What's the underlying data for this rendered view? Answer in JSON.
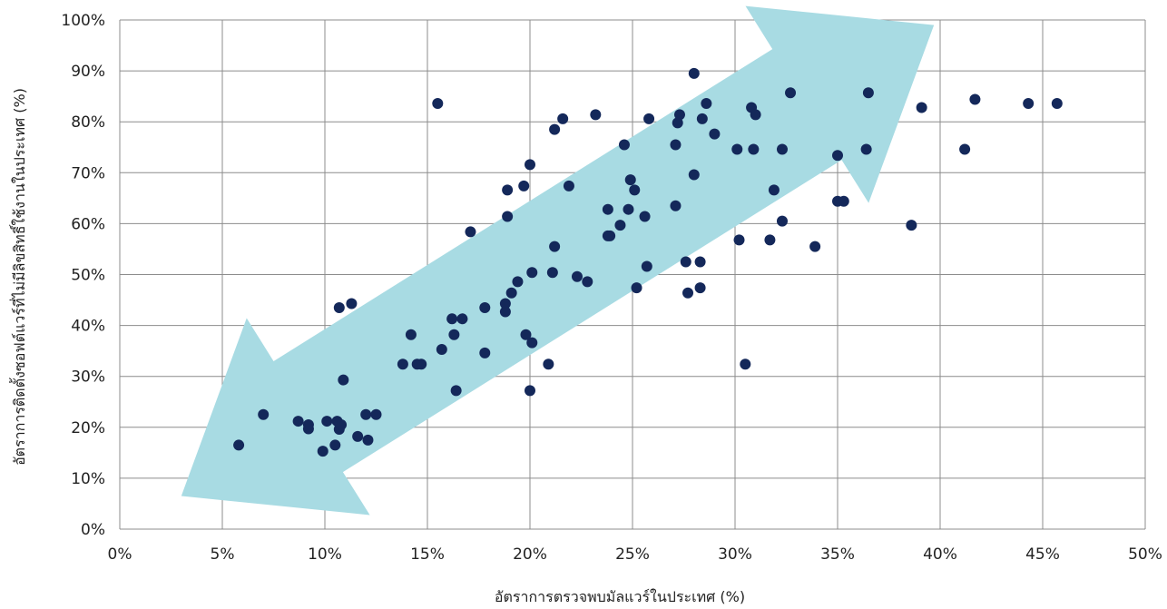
{
  "chart_data": {
    "type": "scatter",
    "xlabel": "อัตราการตรวจพบมัลแวร์ในประเทศ (%)",
    "ylabel": "อัตราการติดตั้งซอฟต์แวร์ที่ไม่มีลิขสิทธิ์ใช้งานในประเทศ (%)",
    "xlim": [
      0,
      50
    ],
    "ylim": [
      0,
      100
    ],
    "x_ticks": [
      "0%",
      "5%",
      "10%",
      "15%",
      "20%",
      "25%",
      "30%",
      "35%",
      "40%",
      "45%",
      "50%"
    ],
    "y_ticks": [
      "0%",
      "10%",
      "20%",
      "30%",
      "40%",
      "50%",
      "60%",
      "70%",
      "80%",
      "90%",
      "100%"
    ],
    "grid": true,
    "trend_arrow": {
      "from": [
        3,
        6.5
      ],
      "to": [
        39.7,
        99
      ],
      "color": "#a8dbe3"
    },
    "point_color": "#14285a",
    "points": [
      [
        5.8,
        16.5
      ],
      [
        7.0,
        22.5
      ],
      [
        8.7,
        21.2
      ],
      [
        9.2,
        20.5
      ],
      [
        9.2,
        19.7
      ],
      [
        9.9,
        15.3
      ],
      [
        10.1,
        21.2
      ],
      [
        10.5,
        16.5
      ],
      [
        10.6,
        21.2
      ],
      [
        10.7,
        19.6
      ],
      [
        10.8,
        20.5
      ],
      [
        10.7,
        43.5
      ],
      [
        10.9,
        29.3
      ],
      [
        11.3,
        44.3
      ],
      [
        11.6,
        18.2
      ],
      [
        12.0,
        22.5
      ],
      [
        12.1,
        17.5
      ],
      [
        12.5,
        22.5
      ],
      [
        13.8,
        32.4
      ],
      [
        14.2,
        38.2
      ],
      [
        14.5,
        32.4
      ],
      [
        14.7,
        32.4
      ],
      [
        15.5,
        83.6
      ],
      [
        15.7,
        35.3
      ],
      [
        16.2,
        41.3
      ],
      [
        16.3,
        38.2
      ],
      [
        16.4,
        27.2
      ],
      [
        16.7,
        41.3
      ],
      [
        17.1,
        58.4
      ],
      [
        17.8,
        43.5
      ],
      [
        17.8,
        34.6
      ],
      [
        18.8,
        42.7
      ],
      [
        18.8,
        44.3
      ],
      [
        18.9,
        61.4
      ],
      [
        18.9,
        66.6
      ],
      [
        19.1,
        46.4
      ],
      [
        19.4,
        48.6
      ],
      [
        19.7,
        67.4
      ],
      [
        19.8,
        38.2
      ],
      [
        20.0,
        71.6
      ],
      [
        20.0,
        27.2
      ],
      [
        20.1,
        50.4
      ],
      [
        20.1,
        36.6
      ],
      [
        20.9,
        32.4
      ],
      [
        21.1,
        50.4
      ],
      [
        21.2,
        55.5
      ],
      [
        21.2,
        78.5
      ],
      [
        21.6,
        80.6
      ],
      [
        21.9,
        67.4
      ],
      [
        22.3,
        49.6
      ],
      [
        22.8,
        48.6
      ],
      [
        23.2,
        81.4
      ],
      [
        23.8,
        62.8
      ],
      [
        23.8,
        57.6
      ],
      [
        23.9,
        57.6
      ],
      [
        24.4,
        59.7
      ],
      [
        24.6,
        75.5
      ],
      [
        24.8,
        62.8
      ],
      [
        24.9,
        68.6
      ],
      [
        25.1,
        66.6
      ],
      [
        25.2,
        47.4
      ],
      [
        25.6,
        61.4
      ],
      [
        25.7,
        51.6
      ],
      [
        25.8,
        80.6
      ],
      [
        27.1,
        75.5
      ],
      [
        27.1,
        63.5
      ],
      [
        27.2,
        79.8
      ],
      [
        27.3,
        81.4
      ],
      [
        27.6,
        52.5
      ],
      [
        27.7,
        46.4
      ],
      [
        28.0,
        89.5
      ],
      [
        28.0,
        69.6
      ],
      [
        28.3,
        52.5
      ],
      [
        28.3,
        47.4
      ],
      [
        28.4,
        80.6
      ],
      [
        28.6,
        83.6
      ],
      [
        29.0,
        77.6
      ],
      [
        30.1,
        74.6
      ],
      [
        30.2,
        56.8
      ],
      [
        30.5,
        32.4
      ],
      [
        30.8,
        82.8
      ],
      [
        30.9,
        74.6
      ],
      [
        31.0,
        81.4
      ],
      [
        31.7,
        56.8
      ],
      [
        31.9,
        66.6
      ],
      [
        32.3,
        74.6
      ],
      [
        32.3,
        60.5
      ],
      [
        32.7,
        85.7
      ],
      [
        33.9,
        55.5
      ],
      [
        35.0,
        73.4
      ],
      [
        35.0,
        64.4
      ],
      [
        35.3,
        64.4
      ],
      [
        36.4,
        74.6
      ],
      [
        36.5,
        85.7
      ],
      [
        38.6,
        59.7
      ],
      [
        39.1,
        82.8
      ],
      [
        41.2,
        74.6
      ],
      [
        41.7,
        84.4
      ],
      [
        44.3,
        83.6
      ],
      [
        45.7,
        83.6
      ]
    ]
  }
}
